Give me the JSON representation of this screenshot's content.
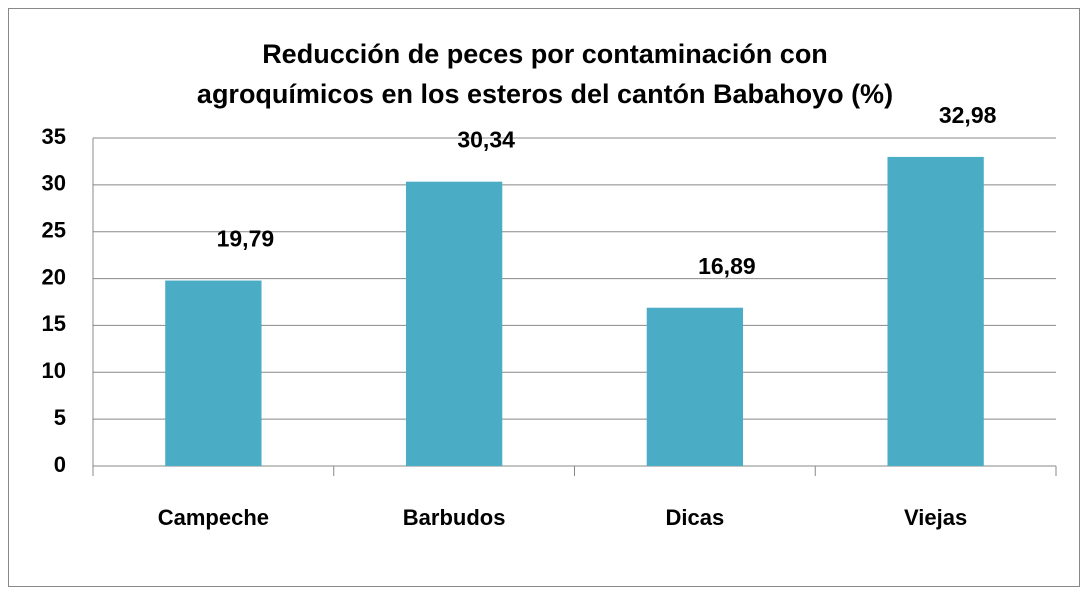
{
  "chart_data": {
    "type": "bar",
    "title": [
      "Reducción de peces  por  contaminación con",
      "agroquímicos en los esteros del cantón Babahoyo (%)"
    ],
    "categories": [
      "Campeche",
      "Barbudos",
      "Dicas",
      "Viejas"
    ],
    "values": [
      19.79,
      30.34,
      16.89,
      32.98
    ],
    "value_labels": [
      "19,79",
      "30,34",
      "16,89",
      "32,98"
    ],
    "color": "#4bacc6",
    "ylim": [
      0,
      35
    ],
    "yticks": [
      0,
      5,
      10,
      15,
      20,
      25,
      30,
      35
    ],
    "grid": true
  }
}
